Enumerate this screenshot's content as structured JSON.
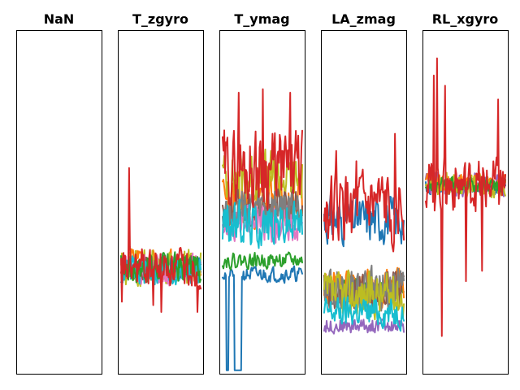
{
  "chart_data": {
    "type": "line",
    "grid": false,
    "legend": "none",
    "palette": [
      "#1f77b4",
      "#ff7f0e",
      "#2ca02c",
      "#d62728",
      "#9467bd",
      "#8c564b",
      "#e377c2",
      "#7f7f7f",
      "#bcbd22",
      "#17becf"
    ],
    "panels": [
      {
        "title": "NaN",
        "ylim": [
          0,
          1
        ],
        "series": []
      },
      {
        "title": "T_zgyro",
        "ylim": [
          0,
          1
        ],
        "series": [
          {
            "color": "#1f77b4",
            "center": 0.31,
            "noise": 0.03,
            "seed": 11
          },
          {
            "color": "#ff7f0e",
            "center": 0.32,
            "noise": 0.04,
            "seed": 12
          },
          {
            "color": "#bcbd22",
            "center": 0.31,
            "noise": 0.05,
            "seed": 13
          },
          {
            "color": "#e377c2",
            "center": 0.3,
            "noise": 0.04,
            "seed": 14
          },
          {
            "color": "#8c564b",
            "center": 0.31,
            "noise": 0.03,
            "seed": 15
          },
          {
            "color": "#17becf",
            "center": 0.3,
            "noise": 0.04,
            "seed": 16
          },
          {
            "color": "#2ca02c",
            "center": 0.31,
            "noise": 0.04,
            "seed": 17
          },
          {
            "color": "#d62728",
            "center": 0.31,
            "noise": 0.05,
            "seed": 18,
            "spikes": [
              [
                10,
                0.6
              ],
              [
                1,
                0.21
              ],
              [
                40,
                0.2
              ],
              [
                50,
                0.18
              ],
              [
                95,
                0.18
              ]
            ]
          }
        ]
      },
      {
        "title": "T_ymag",
        "ylim": [
          0,
          1
        ],
        "series": [
          {
            "color": "#1f77b4",
            "center": 0.29,
            "noise": 0.02,
            "seed": 21,
            "spikes": [
              [
                5,
                0.01
              ],
              [
                6,
                0.01
              ],
              [
                7,
                0.01
              ],
              [
                15,
                0.01
              ],
              [
                16,
                0.01
              ],
              [
                17,
                0.01
              ],
              [
                18,
                0.01
              ],
              [
                19,
                0.01
              ],
              [
                20,
                0.01
              ],
              [
                21,
                0.01
              ],
              [
                22,
                0.01
              ],
              [
                23,
                0.01
              ]
            ]
          },
          {
            "color": "#2ca02c",
            "center": 0.33,
            "noise": 0.02,
            "seed": 22
          },
          {
            "color": "#ff7f0e",
            "center": 0.5,
            "noise": 0.07,
            "seed": 23
          },
          {
            "color": "#bcbd22",
            "center": 0.57,
            "noise": 0.07,
            "seed": 24
          },
          {
            "color": "#8c564b",
            "center": 0.48,
            "noise": 0.05,
            "seed": 25
          },
          {
            "color": "#e377c2",
            "center": 0.44,
            "noise": 0.05,
            "seed": 26
          },
          {
            "color": "#7f7f7f",
            "center": 0.48,
            "noise": 0.05,
            "seed": 27
          },
          {
            "color": "#17becf",
            "center": 0.44,
            "noise": 0.06,
            "seed": 28
          },
          {
            "color": "#d62728",
            "center": 0.6,
            "noise": 0.1,
            "seed": 29,
            "spikes": [
              [
                20,
                0.82
              ],
              [
                50,
                0.83
              ],
              [
                84,
                0.82
              ]
            ]
          }
        ]
      },
      {
        "title": "LA_zmag",
        "ylim": [
          0,
          1
        ],
        "series": [
          {
            "color": "#1f77b4",
            "center": 0.45,
            "noise": 0.06,
            "seed": 31
          },
          {
            "color": "#2ca02c",
            "center": 0.25,
            "noise": 0.03,
            "seed": 32
          },
          {
            "color": "#ff7f0e",
            "center": 0.25,
            "noise": 0.05,
            "seed": 33
          },
          {
            "color": "#9467bd",
            "center": 0.14,
            "noise": 0.02,
            "seed": 34
          },
          {
            "color": "#8c564b",
            "center": 0.24,
            "noise": 0.05,
            "seed": 35
          },
          {
            "color": "#7f7f7f",
            "center": 0.24,
            "noise": 0.06,
            "seed": 36
          },
          {
            "color": "#bcbd22",
            "center": 0.23,
            "noise": 0.06,
            "seed": 37
          },
          {
            "color": "#17becf",
            "center": 0.18,
            "noise": 0.04,
            "seed": 38
          },
          {
            "color": "#d62728",
            "center": 0.48,
            "noise": 0.09,
            "seed": 39,
            "spikes": [
              [
                88,
                0.7
              ],
              [
                15,
                0.65
              ],
              [
                40,
                0.62
              ]
            ]
          }
        ]
      },
      {
        "title": "RL_xgyro",
        "ylim": [
          0,
          1
        ],
        "series": [
          {
            "color": "#1f77b4",
            "center": 0.54,
            "noise": 0.02,
            "seed": 41
          },
          {
            "color": "#9467bd",
            "center": 0.55,
            "noise": 0.03,
            "seed": 42
          },
          {
            "color": "#ff7f0e",
            "center": 0.56,
            "noise": 0.02,
            "seed": 43
          },
          {
            "color": "#bcbd22",
            "center": 0.55,
            "noise": 0.03,
            "seed": 44
          },
          {
            "color": "#2ca02c",
            "center": 0.55,
            "noise": 0.02,
            "seed": 45
          },
          {
            "color": "#d62728",
            "center": 0.55,
            "noise": 0.07,
            "seed": 46,
            "spikes": [
              [
                14,
                0.92
              ],
              [
                10,
                0.87
              ],
              [
                20,
                0.11
              ],
              [
                24,
                0.84
              ],
              [
                50,
                0.27
              ],
              [
                70,
                0.3
              ],
              [
                90,
                0.8
              ]
            ]
          }
        ]
      }
    ]
  }
}
